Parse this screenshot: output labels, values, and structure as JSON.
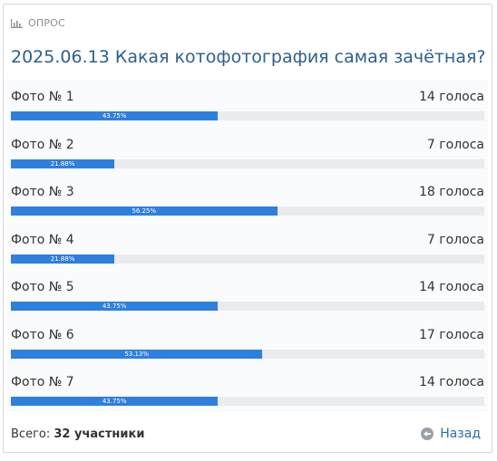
{
  "header": {
    "label": "ОПРОС",
    "icon": "bar-chart-icon"
  },
  "poll": {
    "title": "2025.06.13 Какая котофотография самая зачётная?",
    "options": [
      {
        "label": "Фото № 1",
        "votes_text": "14 голоса",
        "percent_text": "43.75%",
        "percent": 43.75
      },
      {
        "label": "Фото № 2",
        "votes_text": "7 голоса",
        "percent_text": "21.88%",
        "percent": 21.88
      },
      {
        "label": "Фото № 3",
        "votes_text": "18 голоса",
        "percent_text": "56.25%",
        "percent": 56.25
      },
      {
        "label": "Фото № 4",
        "votes_text": "7 голоса",
        "percent_text": "21.88%",
        "percent": 21.88
      },
      {
        "label": "Фото № 5",
        "votes_text": "14 голоса",
        "percent_text": "43.75%",
        "percent": 43.75
      },
      {
        "label": "Фото № 6",
        "votes_text": "17 голоса",
        "percent_text": "53.13%",
        "percent": 53.13
      },
      {
        "label": "Фото № 7",
        "votes_text": "14 голоса",
        "percent_text": "43.75%",
        "percent": 43.75
      }
    ]
  },
  "footer": {
    "total_label": "Всего:",
    "total_value": "32 участники",
    "back_label": "Назад",
    "back_icon": "arrow-left-circle-icon"
  },
  "colors": {
    "accent": "#2f7fdc",
    "track": "#e9ebed",
    "title": "#2c5f8f",
    "link": "#2c6fb0"
  }
}
